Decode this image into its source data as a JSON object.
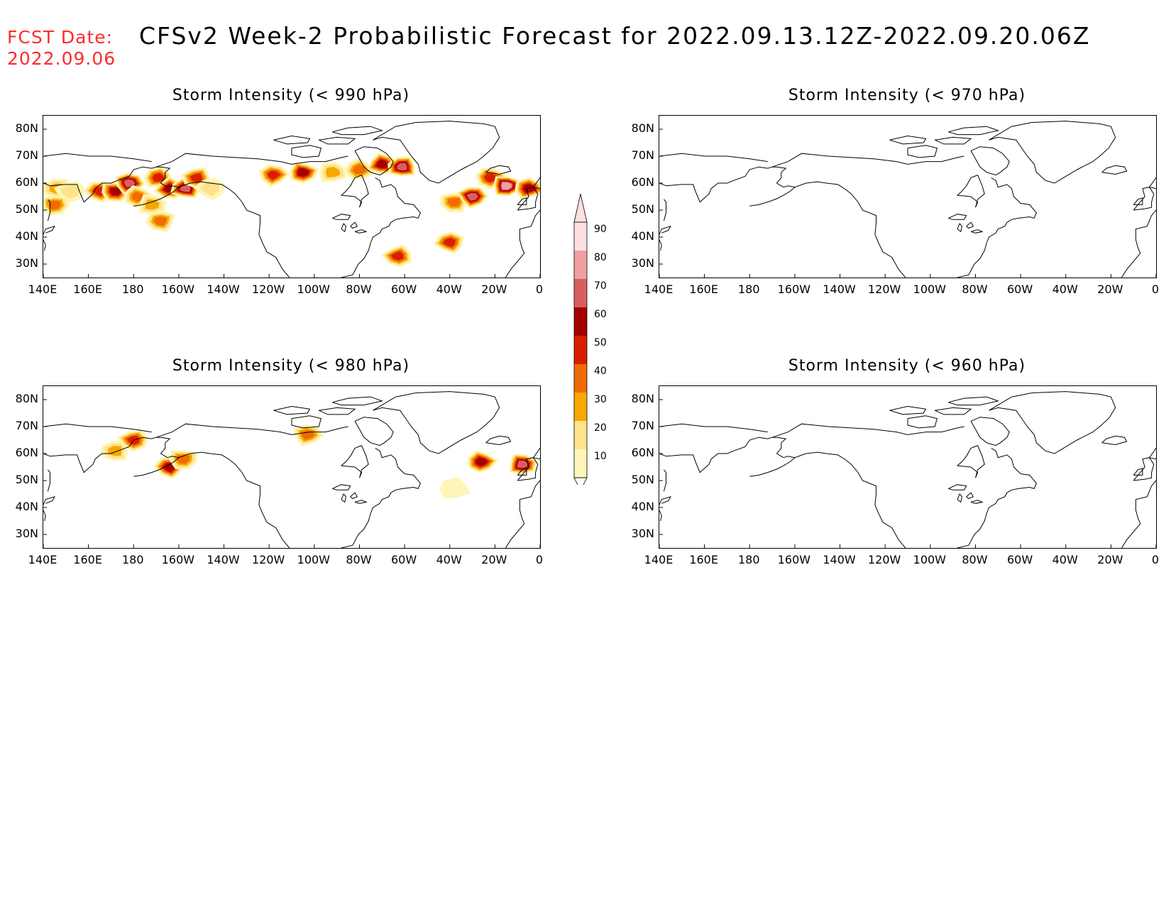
{
  "header": {
    "fcst_label": "FCST Date:",
    "fcst_date": "2022.09.06",
    "title": "CFSv2 Week-2 Probabilistic Forecast for 2022.09.13.12Z-2022.09.20.06Z"
  },
  "axes": {
    "lat_labels": [
      "80N",
      "70N",
      "60N",
      "50N",
      "40N",
      "30N"
    ],
    "lat_values": [
      80,
      70,
      60,
      50,
      40,
      30
    ],
    "lon_labels": [
      "140E",
      "160E",
      "180",
      "160W",
      "140W",
      "120W",
      "100W",
      "80W",
      "60W",
      "40W",
      "20W",
      "0"
    ],
    "lon_values": [
      140,
      160,
      180,
      200,
      220,
      240,
      260,
      280,
      300,
      320,
      340,
      360
    ],
    "lon_range": [
      140,
      360
    ],
    "lat_range": [
      25,
      85
    ]
  },
  "panels": [
    {
      "id": "p990",
      "title": "Storm Intensity (< 990 hPa)",
      "blobs": [
        {
          "lon": 146,
          "lat": 58,
          "p": 30
        },
        {
          "lon": 152,
          "lat": 57,
          "p": 20
        },
        {
          "lon": 165,
          "lat": 57,
          "p": 50
        },
        {
          "lon": 172,
          "lat": 57,
          "p": 60
        },
        {
          "lon": 178,
          "lat": 60,
          "p": 70
        },
        {
          "lon": 182,
          "lat": 55,
          "p": 40
        },
        {
          "lon": 188,
          "lat": 52,
          "p": 30
        },
        {
          "lon": 191,
          "lat": 62,
          "p": 50
        },
        {
          "lon": 196,
          "lat": 58,
          "p": 60
        },
        {
          "lon": 203,
          "lat": 58,
          "p": 70
        },
        {
          "lon": 208,
          "lat": 62,
          "p": 50
        },
        {
          "lon": 214,
          "lat": 58,
          "p": 20
        },
        {
          "lon": 192,
          "lat": 46,
          "p": 40
        },
        {
          "lon": 145,
          "lat": 52,
          "p": 40
        },
        {
          "lon": 242,
          "lat": 63,
          "p": 50
        },
        {
          "lon": 255,
          "lat": 64,
          "p": 60
        },
        {
          "lon": 268,
          "lat": 64,
          "p": 30
        },
        {
          "lon": 280,
          "lat": 65,
          "p": 40
        },
        {
          "lon": 290,
          "lat": 67,
          "p": 60
        },
        {
          "lon": 299,
          "lat": 66,
          "p": 70
        },
        {
          "lon": 297,
          "lat": 33,
          "p": 50
        },
        {
          "lon": 320,
          "lat": 38,
          "p": 50
        },
        {
          "lon": 322,
          "lat": 53,
          "p": 40
        },
        {
          "lon": 330,
          "lat": 55,
          "p": 70
        },
        {
          "lon": 338,
          "lat": 62,
          "p": 50
        },
        {
          "lon": 345,
          "lat": 59,
          "p": 80
        },
        {
          "lon": 355,
          "lat": 58,
          "p": 60
        }
      ]
    },
    {
      "id": "p970",
      "title": "Storm Intensity (< 970 hPa)",
      "blobs": []
    },
    {
      "id": "p980",
      "title": "Storm Intensity (< 980 hPa)",
      "blobs": [
        {
          "lon": 172,
          "lat": 61,
          "p": 30
        },
        {
          "lon": 180,
          "lat": 65,
          "p": 50
        },
        {
          "lon": 196,
          "lat": 55,
          "p": 60
        },
        {
          "lon": 202,
          "lat": 58,
          "p": 40
        },
        {
          "lon": 257,
          "lat": 67,
          "p": 40
        },
        {
          "lon": 334,
          "lat": 57,
          "p": 60
        },
        {
          "lon": 352,
          "lat": 56,
          "p": 70
        },
        {
          "lon": 322,
          "lat": 47,
          "p": 10
        }
      ]
    },
    {
      "id": "p960",
      "title": "Storm Intensity (< 960 hPa)",
      "blobs": []
    }
  ],
  "colorbar": {
    "labels": [
      "90",
      "80",
      "70",
      "60",
      "50",
      "40",
      "30",
      "20",
      "10"
    ],
    "levels": [
      10,
      20,
      30,
      40,
      50,
      60,
      70,
      80,
      90
    ],
    "colors": [
      "#fff5b8",
      "#ffe28a",
      "#f7a800",
      "#f26b00",
      "#d91e00",
      "#a30000",
      "#d95f5f",
      "#f0a0a0",
      "#ffe0e0"
    ]
  }
}
